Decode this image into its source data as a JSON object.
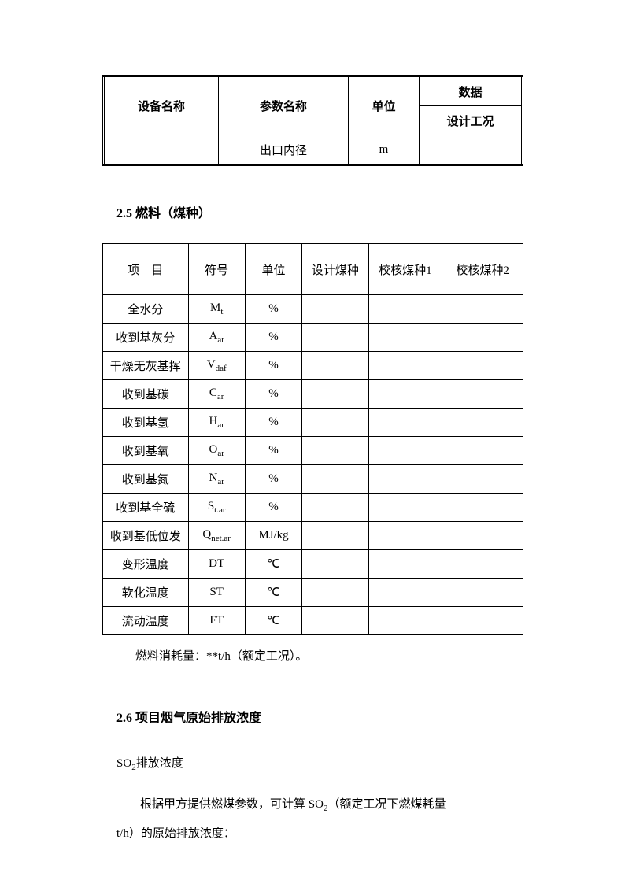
{
  "table1": {
    "headers": {
      "c1": "设备名称",
      "c2": "参数名称",
      "c3": "单位",
      "c4": "数据",
      "c4s": "设计工况"
    },
    "row": {
      "c2": "出口内径",
      "c3": "m"
    }
  },
  "section25": "2.5 燃料（煤种）",
  "table2": {
    "headers": {
      "c1": "项　目",
      "c2": "符号",
      "c3": "单位",
      "c4": "设计煤种",
      "c5": "校核煤种1",
      "c6": "校核煤种2"
    },
    "rows": [
      {
        "c1": "全水分",
        "c2_main": "M",
        "c2_sub": "t",
        "c3": "%"
      },
      {
        "c1": "收到基灰分",
        "c2_main": "A",
        "c2_sub": "ar",
        "c3": "%"
      },
      {
        "c1": "干燥无灰基挥",
        "c2_main": "V",
        "c2_sub": "daf",
        "c3": "%"
      },
      {
        "c1": "收到基碳",
        "c2_main": "C",
        "c2_sub": "ar",
        "c3": "%"
      },
      {
        "c1": "收到基氢",
        "c2_main": "H",
        "c2_sub": "ar",
        "c3": "%"
      },
      {
        "c1": "收到基氧",
        "c2_main": "O",
        "c2_sub": "ar",
        "c3": "%"
      },
      {
        "c1": "收到基氮",
        "c2_main": "N",
        "c2_sub": "ar",
        "c3": "%"
      },
      {
        "c1": "收到基全硫",
        "c2_main": "S",
        "c2_sub": "t.ar",
        "c3": "%"
      },
      {
        "c1": "收到基低位发",
        "c2_main": "Q",
        "c2_sub": "net.ar",
        "c3": "MJ/kg"
      },
      {
        "c1": "变形温度",
        "c2_main": "DT",
        "c2_sub": "",
        "c3": "℃"
      },
      {
        "c1": "软化温度",
        "c2_main": "ST",
        "c2_sub": "",
        "c3": "℃"
      },
      {
        "c1": "流动温度",
        "c2_main": "FT",
        "c2_sub": "",
        "c3": "℃"
      }
    ]
  },
  "note1": "燃料消耗量：**t/h（额定工况）。",
  "section26": "2.6 项目烟气原始排放浓度",
  "para1_prefix": "SO",
  "para1_sub": "2",
  "para1_suffix": "排放浓度",
  "para2_prefix": "根据甲方提供燃煤参数，可计算 SO",
  "para2_sub": "2",
  "para2_suffix": "（额定工况下燃煤耗量",
  "para3": "t/h）的原始排放浓度："
}
